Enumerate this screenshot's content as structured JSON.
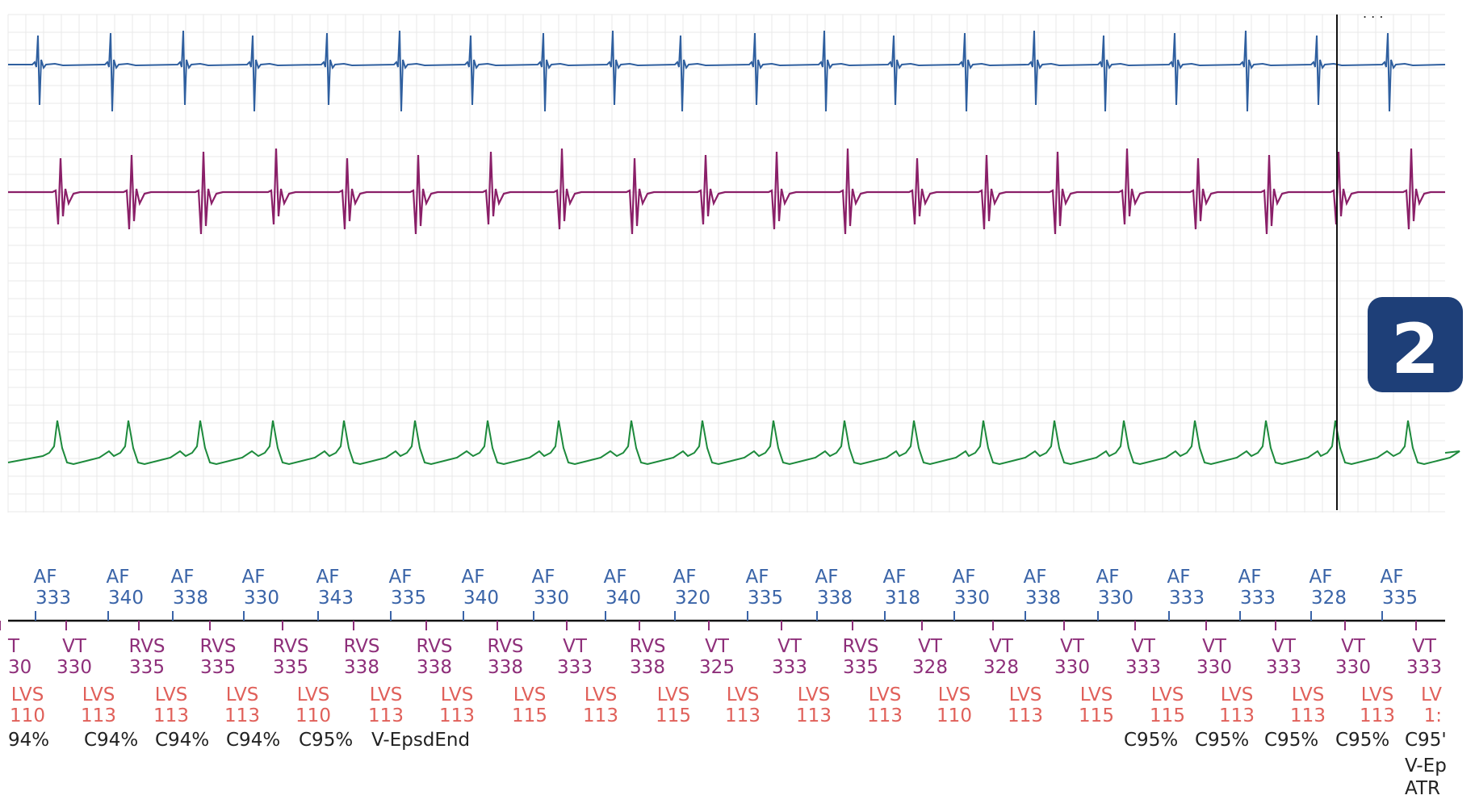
{
  "badge": {
    "label": "2"
  },
  "colors": {
    "atrial_egm": "#2f5f9f",
    "ventricular_egm": "#8a1f68",
    "shock_egm": "#1d8a3c",
    "atrial_marker": "#3a64a8",
    "ventricular_marker": "#8e2f7a",
    "lv_marker": "#e0605a",
    "badge": "#1e3f78",
    "grid": "#e8e8e8"
  },
  "markers": {
    "atrial": [
      {
        "label": "AF",
        "value": "333"
      },
      {
        "label": "AF",
        "value": "340"
      },
      {
        "label": "AF",
        "value": "338"
      },
      {
        "label": "AF",
        "value": "330"
      },
      {
        "label": "AF",
        "value": "343"
      },
      {
        "label": "AF",
        "value": "335"
      },
      {
        "label": "AF",
        "value": "340"
      },
      {
        "label": "AF",
        "value": "330"
      },
      {
        "label": "AF",
        "value": "340"
      },
      {
        "label": "AF",
        "value": "320"
      },
      {
        "label": "AF",
        "value": "335"
      },
      {
        "label": "AF",
        "value": "338"
      },
      {
        "label": "AF",
        "value": "318"
      },
      {
        "label": "AF",
        "value": "330"
      },
      {
        "label": "AF",
        "value": "338"
      },
      {
        "label": "AF",
        "value": "330"
      },
      {
        "label": "AF",
        "value": "333"
      },
      {
        "label": "AF",
        "value": "333"
      },
      {
        "label": "AF",
        "value": "328"
      },
      {
        "label": "AF",
        "value": "335"
      }
    ],
    "ventricular": [
      {
        "label": "T",
        "value": "30"
      },
      {
        "label": "VT",
        "value": "330"
      },
      {
        "label": "RVS",
        "value": "335"
      },
      {
        "label": "RVS",
        "value": "335"
      },
      {
        "label": "RVS",
        "value": "335"
      },
      {
        "label": "RVS",
        "value": "338"
      },
      {
        "label": "RVS",
        "value": "338"
      },
      {
        "label": "RVS",
        "value": "338"
      },
      {
        "label": "VT",
        "value": "333"
      },
      {
        "label": "RVS",
        "value": "338"
      },
      {
        "label": "VT",
        "value": "325"
      },
      {
        "label": "VT",
        "value": "333"
      },
      {
        "label": "RVS",
        "value": "335"
      },
      {
        "label": "VT",
        "value": "328"
      },
      {
        "label": "VT",
        "value": "328"
      },
      {
        "label": "VT",
        "value": "330"
      },
      {
        "label": "VT",
        "value": "333"
      },
      {
        "label": "VT",
        "value": "330"
      },
      {
        "label": "VT",
        "value": "333"
      },
      {
        "label": "VT",
        "value": "330"
      },
      {
        "label": "VT",
        "value": "333"
      }
    ],
    "lv": [
      {
        "label": "LVS",
        "value": "110"
      },
      {
        "label": "LVS",
        "value": "113"
      },
      {
        "label": "LVS",
        "value": "113"
      },
      {
        "label": "LVS",
        "value": "113"
      },
      {
        "label": "LVS",
        "value": "110"
      },
      {
        "label": "LVS",
        "value": "113"
      },
      {
        "label": "LVS",
        "value": "113"
      },
      {
        "label": "LVS",
        "value": "115"
      },
      {
        "label": "LVS",
        "value": "113"
      },
      {
        "label": "LVS",
        "value": "115"
      },
      {
        "label": "LVS",
        "value": "113"
      },
      {
        "label": "LVS",
        "value": "113"
      },
      {
        "label": "LVS",
        "value": "113"
      },
      {
        "label": "LVS",
        "value": "110"
      },
      {
        "label": "LVS",
        "value": "113"
      },
      {
        "label": "LVS",
        "value": "115"
      },
      {
        "label": "LVS",
        "value": "115"
      },
      {
        "label": "LVS",
        "value": "113"
      },
      {
        "label": "LVS",
        "value": "113"
      },
      {
        "label": "LVS",
        "value": "113"
      },
      {
        "label": "LV",
        "value": "1:"
      }
    ],
    "annotations_left": [
      "94%",
      "C94%",
      "C94%",
      "C94%",
      "C95%",
      "V-EpsdEnd"
    ],
    "annotations_right": [
      "C95%",
      "C95%",
      "C95%",
      "C95%",
      "C95'"
    ],
    "annotations_tail": [
      "V-Ep",
      "ATR"
    ]
  }
}
